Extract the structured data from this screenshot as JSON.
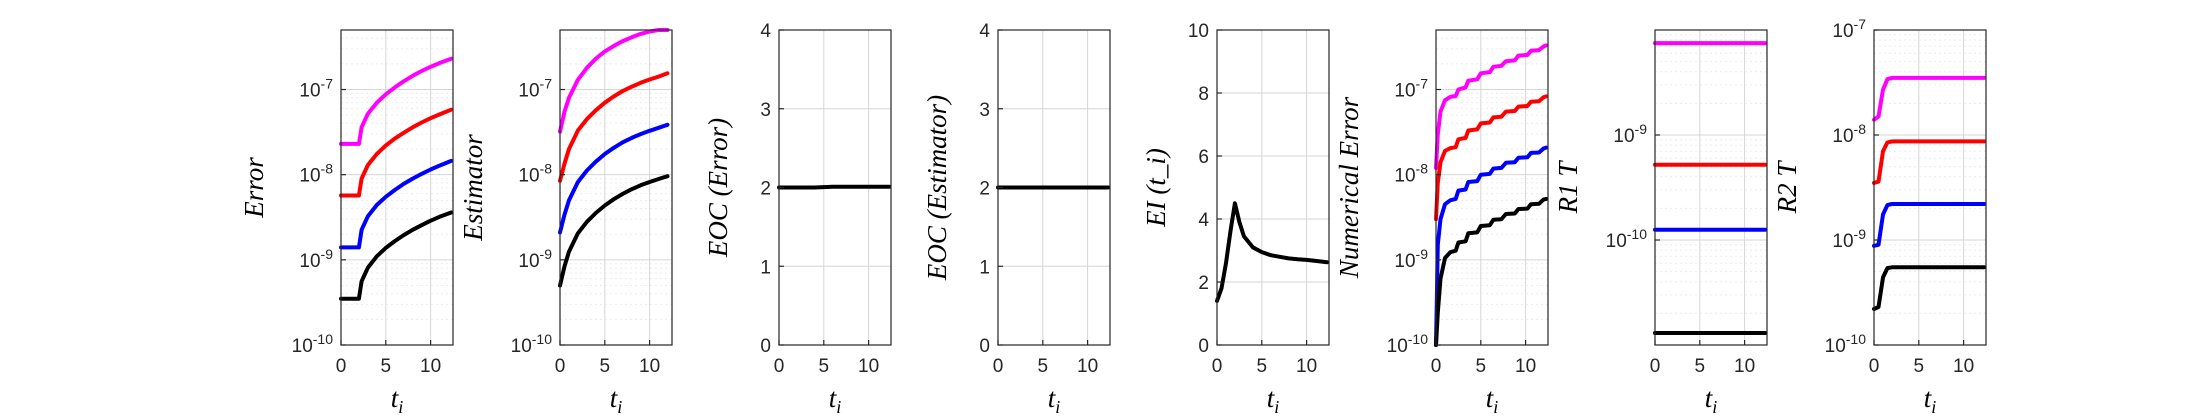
{
  "chart_data": [
    {
      "type": "line",
      "ylabel": "Error",
      "xlabel": "t_i",
      "yscale": "log",
      "xlim": [
        0,
        12.5
      ],
      "ylim": [
        1e-10,
        5e-07
      ],
      "xticks": [
        0,
        5,
        10
      ],
      "xtick_labels": [
        "0",
        "5",
        "10"
      ],
      "yticks": [
        1e-10,
        1e-09,
        1e-08,
        1e-07
      ],
      "ytick_labels": [
        "10-10",
        "10-9",
        "10-8",
        "10-7"
      ],
      "grid": true,
      "x": [
        0,
        1,
        2,
        2.3,
        3,
        4,
        5,
        6,
        7,
        8,
        9,
        10,
        11,
        12.3
      ],
      "series": [
        {
          "color": "#ff00ff",
          "values": [
            2.3e-08,
            2.3e-08,
            2.3e-08,
            3.6e-08,
            5.2e-08,
            7e-08,
            8.8e-08,
            1.06e-07,
            1.25e-07,
            1.45e-07,
            1.65e-07,
            1.85e-07,
            2.05e-07,
            2.3e-07
          ]
        },
        {
          "color": "#ff0000",
          "values": [
            5.7e-09,
            5.7e-09,
            5.7e-09,
            9e-09,
            1.3e-08,
            1.75e-08,
            2.2e-08,
            2.65e-08,
            3.1e-08,
            3.6e-08,
            4.1e-08,
            4.6e-08,
            5.1e-08,
            5.8e-08
          ]
        },
        {
          "color": "#0000ff",
          "values": [
            1.4e-09,
            1.4e-09,
            1.4e-09,
            2.25e-09,
            3.25e-09,
            4.4e-09,
            5.5e-09,
            6.6e-09,
            7.8e-09,
            9e-09,
            1.02e-08,
            1.15e-08,
            1.28e-08,
            1.45e-08
          ]
        },
        {
          "color": "#000000",
          "values": [
            3.5e-10,
            3.5e-10,
            3.5e-10,
            5.6e-10,
            8.1e-10,
            1.1e-09,
            1.38e-09,
            1.66e-09,
            1.95e-09,
            2.25e-09,
            2.55e-09,
            2.88e-09,
            3.2e-09,
            3.6e-09
          ]
        }
      ]
    },
    {
      "type": "line",
      "ylabel": "Estimator",
      "xlabel": "t_i",
      "yscale": "log",
      "xlim": [
        0,
        12.5
      ],
      "ylim": [
        1e-10,
        5e-07
      ],
      "xticks": [
        0,
        5,
        10
      ],
      "xtick_labels": [
        "0",
        "5",
        "10"
      ],
      "yticks": [
        1e-10,
        1e-09,
        1e-08,
        1e-07
      ],
      "ytick_labels": [
        "10-10",
        "10-9",
        "10-8",
        "10-7"
      ],
      "grid": true,
      "x": [
        0,
        0.5,
        1,
        2,
        3,
        4,
        5,
        6,
        7,
        8,
        9,
        10,
        11,
        12
      ],
      "series": [
        {
          "color": "#ff00ff",
          "values": [
            3.2e-08,
            5.5e-08,
            8e-08,
            1.3e-07,
            1.8e-07,
            2.3e-07,
            2.8e-07,
            3.25e-07,
            3.7e-07,
            4.1e-07,
            4.5e-07,
            4.8e-07,
            5e-07,
            5e-07
          ]
        },
        {
          "color": "#ff0000",
          "values": [
            8.5e-09,
            1.35e-08,
            2e-08,
            3.3e-08,
            4.5e-08,
            5.7e-08,
            7e-08,
            8.3e-08,
            9.6e-08,
            1.08e-07,
            1.2e-07,
            1.31e-07,
            1.42e-07,
            1.55e-07
          ]
        },
        {
          "color": "#0000ff",
          "values": [
            2.1e-09,
            3.4e-09,
            5e-09,
            8.2e-09,
            1.12e-08,
            1.42e-08,
            1.75e-08,
            2.07e-08,
            2.4e-08,
            2.7e-08,
            3e-08,
            3.28e-08,
            3.55e-08,
            3.85e-08
          ]
        },
        {
          "color": "#000000",
          "values": [
            5e-10,
            8.4e-10,
            1.25e-09,
            2.05e-09,
            2.8e-09,
            3.55e-09,
            4.35e-09,
            5.15e-09,
            5.95e-09,
            6.75e-09,
            7.5e-09,
            8.2e-09,
            8.9e-09,
            9.6e-09
          ]
        }
      ]
    },
    {
      "type": "line",
      "ylabel": "EOC (Error)",
      "xlabel": "t_i",
      "yscale": "linear",
      "xlim": [
        0,
        12.5
      ],
      "ylim": [
        0,
        4
      ],
      "xticks": [
        0,
        5,
        10
      ],
      "xtick_labels": [
        "0",
        "5",
        "10"
      ],
      "yticks": [
        0,
        1,
        2,
        3,
        4
      ],
      "ytick_labels": [
        "0",
        "1",
        "2",
        "3",
        "4"
      ],
      "grid": true,
      "x": [
        0,
        2,
        4,
        6,
        8,
        10,
        12.3
      ],
      "series": [
        {
          "color": "#000000",
          "values": [
            2.0,
            2.0,
            2.0,
            2.01,
            2.01,
            2.01,
            2.01
          ]
        }
      ]
    },
    {
      "type": "line",
      "ylabel": "EOC (Estimator)",
      "xlabel": "t_i",
      "yscale": "linear",
      "xlim": [
        0,
        12.5
      ],
      "ylim": [
        0,
        4
      ],
      "xticks": [
        0,
        5,
        10
      ],
      "xtick_labels": [
        "0",
        "5",
        "10"
      ],
      "yticks": [
        0,
        1,
        2,
        3,
        4
      ],
      "ytick_labels": [
        "0",
        "1",
        "2",
        "3",
        "4"
      ],
      "grid": true,
      "x": [
        0,
        4,
        8,
        12.3
      ],
      "series": [
        {
          "color": "#000000",
          "values": [
            2.0,
            2.0,
            2.0,
            2.0
          ]
        }
      ]
    },
    {
      "type": "line",
      "ylabel": "EI (t_i)",
      "xlabel": "t_i",
      "yscale": "linear",
      "xlim": [
        0,
        12.5
      ],
      "ylim": [
        0,
        10
      ],
      "xticks": [
        0,
        5,
        10
      ],
      "xtick_labels": [
        "0",
        "5",
        "10"
      ],
      "yticks": [
        0,
        2,
        4,
        6,
        8,
        10
      ],
      "ytick_labels": [
        "0",
        "2",
        "4",
        "6",
        "8",
        "10"
      ],
      "grid": true,
      "x": [
        0,
        0.5,
        1,
        1.5,
        2,
        2.5,
        3,
        4,
        5,
        6,
        7,
        8,
        9,
        10,
        11,
        12.3
      ],
      "series": [
        {
          "color": "#000000",
          "values": [
            1.4,
            1.8,
            2.6,
            3.6,
            4.5,
            3.9,
            3.45,
            3.1,
            2.95,
            2.85,
            2.8,
            2.75,
            2.72,
            2.7,
            2.67,
            2.63
          ]
        }
      ]
    },
    {
      "type": "line",
      "ylabel": "Numerical Error",
      "xlabel": "t_i",
      "yscale": "log",
      "xlim": [
        0,
        12.5
      ],
      "ylim": [
        1e-10,
        5e-07
      ],
      "xticks": [
        0,
        5,
        10
      ],
      "xtick_labels": [
        "0",
        "5",
        "10"
      ],
      "yticks": [
        1e-10,
        1e-09,
        1e-08,
        1e-07
      ],
      "ytick_labels": [
        "10-10",
        "10-9",
        "10-8",
        "10-7"
      ],
      "grid": true,
      "x": [
        0,
        0.2,
        0.5,
        1,
        1.6,
        2.2,
        2.5,
        3.3,
        3.6,
        4.6,
        5.0,
        6.0,
        6.4,
        7.3,
        7.8,
        8.8,
        9.2,
        10.2,
        10.6,
        11.5,
        12.0,
        12.3
      ],
      "series": [
        {
          "color": "#ff00ff",
          "values": [
            1.2e-08,
            3e-08,
            5.5e-08,
            7.5e-08,
            8.2e-08,
            8.4e-08,
            1e-07,
            1.06e-07,
            1.27e-07,
            1.32e-07,
            1.55e-07,
            1.6e-07,
            1.85e-07,
            1.9e-07,
            2.15e-07,
            2.2e-07,
            2.5e-07,
            2.55e-07,
            2.85e-07,
            2.9e-07,
            3.2e-07,
            3.3e-07
          ]
        },
        {
          "color": "#ff0000",
          "values": [
            3e-09,
            8e-09,
            1.4e-08,
            1.9e-08,
            2.05e-08,
            2.1e-08,
            2.6e-08,
            2.7e-08,
            3.3e-08,
            3.4e-08,
            4e-08,
            4.1e-08,
            4.7e-08,
            4.8e-08,
            5.5e-08,
            5.6e-08,
            6.3e-08,
            6.4e-08,
            7.2e-08,
            7.3e-08,
            8.1e-08,
            8.3e-08
          ]
        },
        {
          "color": "#0000ff",
          "values": [
            1e-10,
            1.5e-09,
            3e-09,
            4.5e-09,
            5e-09,
            5.2e-09,
            6.5e-09,
            6.7e-09,
            8.2e-09,
            8.4e-09,
            1e-08,
            1.02e-08,
            1.18e-08,
            1.2e-08,
            1.38e-08,
            1.4e-08,
            1.58e-08,
            1.6e-08,
            1.8e-08,
            1.82e-08,
            2.03e-08,
            2.08e-08
          ]
        },
        {
          "color": "#000000",
          "values": [
            1e-10,
            2.4e-10,
            6e-10,
            1.05e-09,
            1.23e-09,
            1.28e-09,
            1.6e-09,
            1.65e-09,
            2.05e-09,
            2.1e-09,
            2.5e-09,
            2.55e-09,
            2.95e-09,
            3e-09,
            3.45e-09,
            3.5e-09,
            3.95e-09,
            4e-09,
            4.5e-09,
            4.55e-09,
            5.1e-09,
            5.2e-09
          ]
        }
      ]
    },
    {
      "type": "line",
      "ylabel": "R1 T",
      "xlabel": "t_i",
      "yscale": "log",
      "xlim": [
        0,
        12.5
      ],
      "ylim": [
        1e-11,
        1e-08
      ],
      "xticks": [
        0,
        5,
        10
      ],
      "xtick_labels": [
        "0",
        "5",
        "10"
      ],
      "yticks": [
        1e-10,
        1e-09
      ],
      "ytick_labels": [
        "10-10",
        "10-9"
      ],
      "grid": true,
      "x": [
        0,
        6,
        12.3
      ],
      "series": [
        {
          "color": "#ff00ff",
          "values": [
            7.5e-09,
            7.5e-09,
            7.5e-09
          ]
        },
        {
          "color": "#ff0000",
          "values": [
            5.2e-10,
            5.2e-10,
            5.2e-10
          ]
        },
        {
          "color": "#0000ff",
          "values": [
            1.25e-10,
            1.25e-10,
            1.25e-10
          ]
        },
        {
          "color": "#000000",
          "values": [
            1.3e-11,
            1.3e-11,
            1.3e-11
          ]
        }
      ]
    },
    {
      "type": "line",
      "ylabel": "R2 T",
      "xlabel": "t_i",
      "yscale": "log",
      "xlim": [
        0,
        12.5
      ],
      "ylim": [
        1e-10,
        1e-07
      ],
      "xticks": [
        0,
        5,
        10
      ],
      "xtick_labels": [
        "0",
        "5",
        "10"
      ],
      "yticks": [
        1e-10,
        1e-09,
        1e-08,
        1e-07
      ],
      "ytick_labels": [
        "10-10",
        "10-9",
        "10-8",
        "10-7"
      ],
      "grid": true,
      "x": [
        0,
        0.5,
        1,
        1.5,
        2,
        4,
        8,
        12.3
      ],
      "series": [
        {
          "color": "#ff00ff",
          "values": [
            1.4e-08,
            1.5e-08,
            2.7e-08,
            3.4e-08,
            3.5e-08,
            3.5e-08,
            3.5e-08,
            3.5e-08
          ]
        },
        {
          "color": "#ff0000",
          "values": [
            3.5e-09,
            3.6e-09,
            7e-09,
            8.5e-09,
            8.7e-09,
            8.7e-09,
            8.7e-09,
            8.7e-09
          ]
        },
        {
          "color": "#0000ff",
          "values": [
            8.8e-10,
            9e-10,
            1.75e-09,
            2.15e-09,
            2.2e-09,
            2.2e-09,
            2.2e-09,
            2.2e-09
          ]
        },
        {
          "color": "#000000",
          "values": [
            2.2e-10,
            2.3e-10,
            4.4e-10,
            5.4e-10,
            5.5e-10,
            5.5e-10,
            5.5e-10,
            5.5e-10
          ]
        }
      ]
    }
  ]
}
